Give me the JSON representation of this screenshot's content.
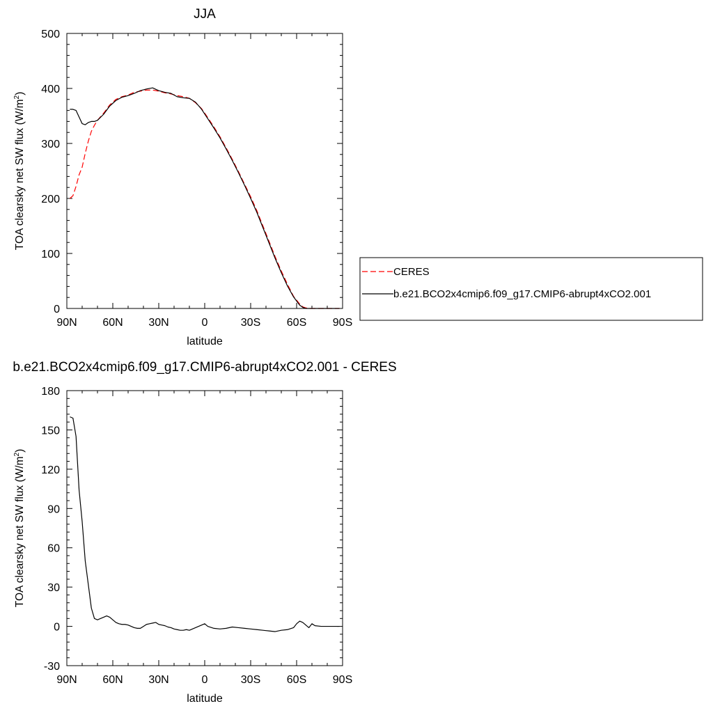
{
  "chart_data": [
    {
      "type": "line",
      "title": "JJA",
      "xlabel": "latitude",
      "ylabel_main": "TOA clearsky net SW flux (W/m",
      "ylabel_sup": "2",
      "ylabel_close": ")",
      "xlim": [
        90,
        -90
      ],
      "ylim": [
        0,
        500
      ],
      "x_ticks": [
        {
          "value": 90,
          "label": "90N"
        },
        {
          "value": 60,
          "label": "60N"
        },
        {
          "value": 30,
          "label": "30N"
        },
        {
          "value": 0,
          "label": "0"
        },
        {
          "value": -30,
          "label": "30S"
        },
        {
          "value": -60,
          "label": "60S"
        },
        {
          "value": -90,
          "label": "90S"
        }
      ],
      "y_ticks": [
        {
          "value": 0,
          "label": "0"
        },
        {
          "value": 100,
          "label": "100"
        },
        {
          "value": 200,
          "label": "200"
        },
        {
          "value": 300,
          "label": "300"
        },
        {
          "value": 400,
          "label": "400"
        },
        {
          "value": 500,
          "label": "500"
        }
      ],
      "legend": {
        "placement": "right-outside"
      },
      "series": [
        {
          "name": "CERES",
          "color": "#ff0000",
          "dash": true,
          "x": [
            88,
            86,
            84,
            82,
            80,
            78,
            76,
            74,
            72,
            70,
            66,
            62,
            58,
            54,
            50,
            46,
            42,
            38,
            34,
            30,
            26,
            22,
            18,
            14,
            10,
            6,
            2,
            -2,
            -6,
            -10,
            -14,
            -18,
            -22,
            -26,
            -30,
            -34,
            -38,
            -42,
            -46,
            -50,
            -54,
            -58,
            -62,
            -64,
            -66,
            -68,
            -70,
            -72,
            -74,
            -76,
            -78,
            -80,
            -82,
            -84,
            -86,
            -88
          ],
          "y": [
            200,
            205,
            222,
            243,
            257,
            282,
            304,
            322,
            333,
            342,
            355,
            370,
            380,
            385,
            388,
            393,
            395,
            397,
            397,
            395,
            392,
            390,
            387,
            385,
            382,
            374,
            363,
            347,
            330,
            312,
            292,
            271,
            249,
            226,
            203,
            178,
            150,
            122,
            94,
            68,
            44,
            22,
            8,
            3,
            1,
            0,
            0,
            0,
            0,
            0,
            0,
            0,
            0,
            0,
            0,
            0
          ]
        },
        {
          "name": "b.e21.BCO2x4cmip6.f09_g17.CMIP6-abrupt4xCO2.001",
          "color": "#000000",
          "dash": false,
          "x": [
            88,
            86,
            84,
            82,
            80,
            78,
            76,
            74,
            72,
            70,
            66,
            62,
            58,
            54,
            50,
            46,
            42,
            38,
            34,
            30,
            26,
            22,
            18,
            14,
            10,
            6,
            2,
            -2,
            -6,
            -10,
            -14,
            -18,
            -22,
            -26,
            -30,
            -34,
            -38,
            -42,
            -46,
            -50,
            -54,
            -58,
            -62,
            -64,
            -66,
            -68,
            -70,
            -72,
            -74,
            -76,
            -78,
            -80,
            -82,
            -84,
            -86,
            -88
          ],
          "y": [
            362,
            362,
            360,
            348,
            336,
            334,
            338,
            340,
            340,
            342,
            353,
            368,
            378,
            384,
            387,
            391,
            396,
            399,
            401,
            396,
            393,
            391,
            385,
            383,
            382,
            375,
            362,
            345,
            328,
            310,
            290,
            269,
            247,
            224,
            200,
            175,
            147,
            119,
            91,
            65,
            41,
            21,
            6,
            2,
            0,
            0,
            0,
            0,
            0,
            0,
            0,
            0,
            0,
            0,
            0,
            0
          ]
        }
      ]
    },
    {
      "type": "line",
      "title": "b.e21.BCO2x4cmip6.f09_g17.CMIP6-abrupt4xCO2.001 - CERES",
      "xlabel": "latitude",
      "ylabel_main": "TOA clearsky net SW flux (W/m",
      "ylabel_sup": "2",
      "ylabel_close": ")",
      "xlim": [
        90,
        -90
      ],
      "ylim": [
        -30,
        180
      ],
      "x_ticks": [
        {
          "value": 90,
          "label": "90N"
        },
        {
          "value": 60,
          "label": "60N"
        },
        {
          "value": 30,
          "label": "30N"
        },
        {
          "value": 0,
          "label": "0"
        },
        {
          "value": -30,
          "label": "30S"
        },
        {
          "value": -60,
          "label": "60S"
        },
        {
          "value": -90,
          "label": "90S"
        }
      ],
      "y_ticks": [
        {
          "value": -30,
          "label": "-30"
        },
        {
          "value": 0,
          "label": "0"
        },
        {
          "value": 30,
          "label": "30"
        },
        {
          "value": 60,
          "label": "60"
        },
        {
          "value": 90,
          "label": "90"
        },
        {
          "value": 120,
          "label": "120"
        },
        {
          "value": 150,
          "label": "150"
        },
        {
          "value": 180,
          "label": "180"
        }
      ],
      "series": [
        {
          "name": "",
          "color": "#000000",
          "dash": false,
          "x": [
            88,
            86,
            84,
            82,
            80,
            78,
            76,
            74,
            72,
            70,
            68,
            66,
            64,
            62,
            60,
            58,
            56,
            54,
            52,
            50,
            48,
            46,
            44,
            42,
            40,
            38,
            36,
            34,
            32,
            30,
            28,
            26,
            24,
            22,
            20,
            18,
            16,
            14,
            12,
            10,
            8,
            6,
            4,
            2,
            0,
            -2,
            -6,
            -10,
            -14,
            -18,
            -22,
            -26,
            -30,
            -34,
            -38,
            -42,
            -46,
            -50,
            -54,
            -58,
            -60,
            -62,
            -64,
            -66,
            -68,
            -70,
            -72,
            -76,
            -80,
            -84,
            -88
          ],
          "y": [
            160,
            159,
            145,
            104,
            80,
            50,
            32,
            14,
            6,
            5,
            6,
            7,
            8,
            7,
            5,
            3,
            2,
            1.5,
            1.5,
            1,
            0,
            -1,
            -1.5,
            -1.5,
            0,
            1.5,
            2,
            2.5,
            3,
            1.5,
            1,
            0.5,
            -0.5,
            -1,
            -2,
            -2.5,
            -3,
            -3,
            -2.5,
            -3,
            -2,
            -1,
            0,
            1,
            2,
            0,
            -1.5,
            -2,
            -1.5,
            -0.5,
            -1,
            -1.5,
            -2,
            -2.5,
            -3,
            -3.5,
            -4,
            -3,
            -2.5,
            -1,
            2,
            4,
            3,
            1,
            -1,
            2,
            0.5,
            0,
            0,
            0,
            0
          ]
        }
      ]
    }
  ]
}
